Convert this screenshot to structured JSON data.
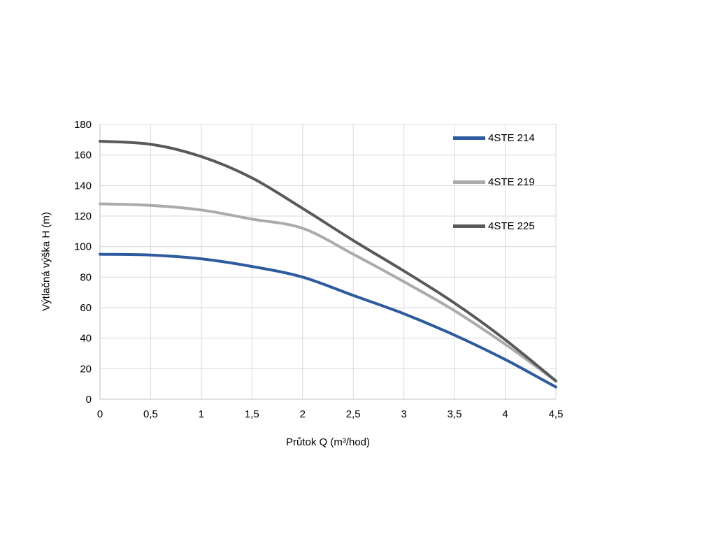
{
  "chart_data": {
    "type": "line",
    "x": [
      0,
      0.5,
      1,
      1.5,
      2,
      2.5,
      3,
      3.5,
      4,
      4.5
    ],
    "series": [
      {
        "name": "4STE 214",
        "color": "#2e5a9e",
        "values": [
          95,
          94.5,
          92,
          87,
          80,
          68,
          56,
          42,
          26,
          8
        ]
      },
      {
        "name": "4STE 219",
        "color": "#ababab",
        "values": [
          128,
          127,
          124,
          118,
          112,
          95,
          77,
          58,
          36,
          12
        ]
      },
      {
        "name": "4STE 225",
        "color": "#595959",
        "values": [
          169,
          167,
          159,
          145,
          125,
          104,
          84,
          63,
          39,
          12
        ]
      }
    ],
    "title": "",
    "xlabel": "Průtok Q (m³/hod)",
    "ylabel": "Výtlačná výška H (m)",
    "xlim": [
      0,
      4.5
    ],
    "ylim": [
      0,
      180
    ],
    "x_tick_labels": [
      "0",
      "0,5",
      "1",
      "1,5",
      "2",
      "2,5",
      "3",
      "3,5",
      "4",
      "4,5"
    ],
    "y_ticks": [
      0,
      20,
      40,
      60,
      80,
      100,
      120,
      140,
      160,
      180
    ],
    "grid": true,
    "grid_color": "#d9d9d9",
    "axis_color": "#bfbfbf",
    "tick_label_color": "#000000",
    "legend_position": "inside-top-right",
    "line_width": 4
  }
}
